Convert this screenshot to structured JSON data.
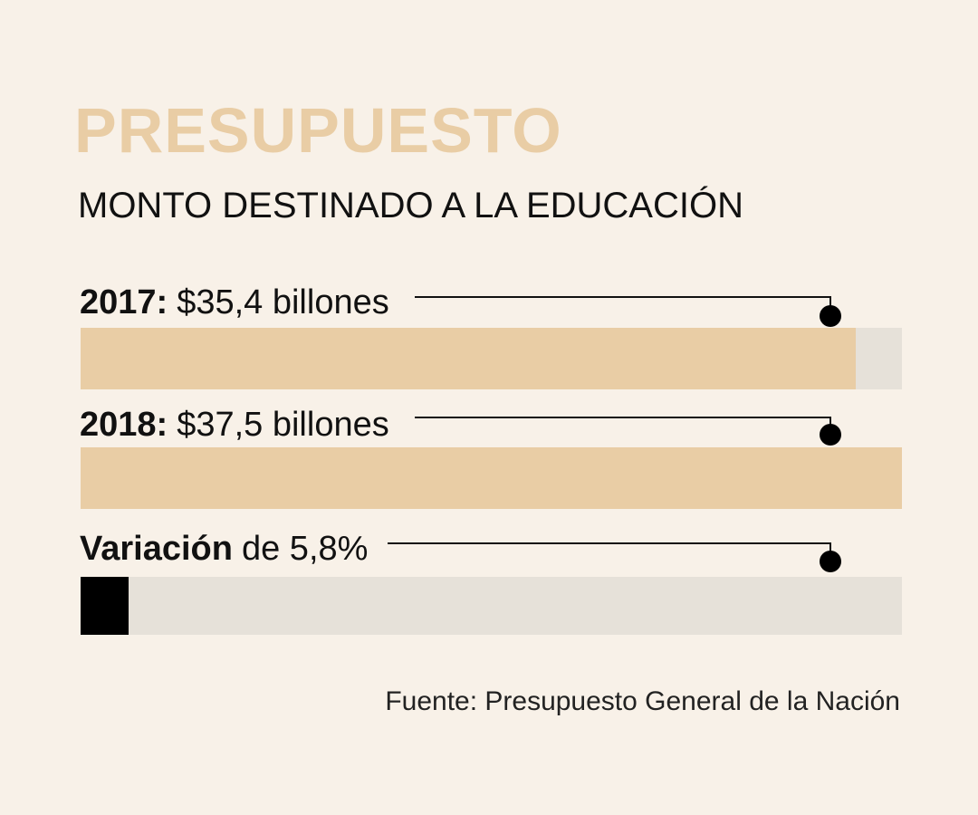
{
  "colors": {
    "background": "#f8f1e8",
    "accent": "#e9cda5",
    "track": "#e6e1d9",
    "variation": "#000000",
    "text": "#111111"
  },
  "chart_data": {
    "type": "bar",
    "title": "PRESUPUESTO",
    "subtitle": "MONTO DESTINADO A LA EDUCACIÓN",
    "source": "Fuente: Presupuesto General de la Nación",
    "scale_max": 37.5,
    "rows": [
      {
        "label_bold": "2017:",
        "label_text": "$35,4 billones",
        "value": 35.4,
        "kind": "amount"
      },
      {
        "label_bold": "2018:",
        "label_text": "$37,5 billones",
        "value": 37.5,
        "kind": "amount"
      },
      {
        "label_bold": "Variación",
        "label_text": "de 5,8%",
        "value": 5.8,
        "kind": "percent"
      }
    ]
  }
}
